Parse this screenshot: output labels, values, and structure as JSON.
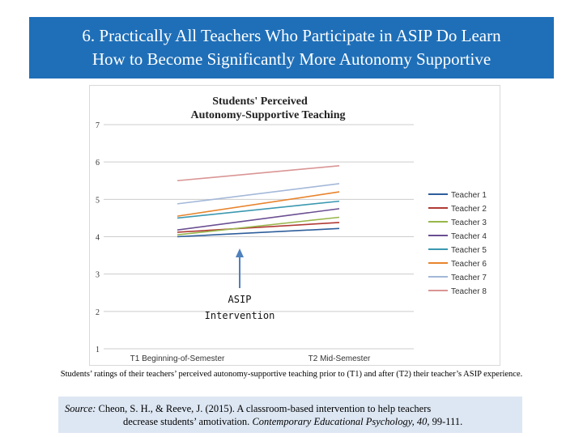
{
  "slide": {
    "title_line1": "6.  Practically All Teachers Who Participate in ASIP Do Learn",
    "title_line2": "How to Become Significantly More Autonomy Supportive",
    "caption": "Students’ ratings of their teachers’ perceived autonomy-supportive teaching prior to (T1) and after (T2) their teacher’s ASIP experience.",
    "source": {
      "label": "Source:",
      "line1_text": " Cheon, S. H., & Reeve, J. (2015).  A classroom-based intervention to help teachers",
      "line2_text": "decrease students’ amotivation.  ",
      "journal": "Contemporary Educational Psychology, 40,",
      "pages": " 99-111."
    }
  },
  "chart_data": {
    "type": "line",
    "title_line1": "Students' Perceived",
    "title_line2": "Autonomy-Supportive Teaching",
    "categories": [
      "T1 Beginning-of-Semester",
      "T2 Mid-Semester"
    ],
    "ylim": [
      1,
      7
    ],
    "yticks": [
      1,
      2,
      3,
      4,
      5,
      6,
      7
    ],
    "grid": true,
    "legend_position": "right",
    "annotation": {
      "line1": "ASIP",
      "line2": "Intervention",
      "arrow_color": "#4f81bd"
    },
    "series": [
      {
        "name": "Teacher 1",
        "color": "#2e5e9b",
        "values": [
          4.0,
          4.22
        ]
      },
      {
        "name": "Teacher 2",
        "color": "#b03a35",
        "values": [
          4.12,
          4.38
        ]
      },
      {
        "name": "Teacher 3",
        "color": "#98b64b",
        "values": [
          4.05,
          4.52
        ]
      },
      {
        "name": "Teacher 4",
        "color": "#6a4f92",
        "values": [
          4.18,
          4.75
        ]
      },
      {
        "name": "Teacher 5",
        "color": "#3b98b0",
        "values": [
          4.5,
          4.95
        ]
      },
      {
        "name": "Teacher 6",
        "color": "#e8842d",
        "values": [
          4.55,
          5.2
        ]
      },
      {
        "name": "Teacher 7",
        "color": "#a3b8d8",
        "values": [
          4.88,
          5.42
        ]
      },
      {
        "name": "Teacher 8",
        "color": "#d99594",
        "values": [
          5.5,
          5.9
        ]
      }
    ]
  }
}
